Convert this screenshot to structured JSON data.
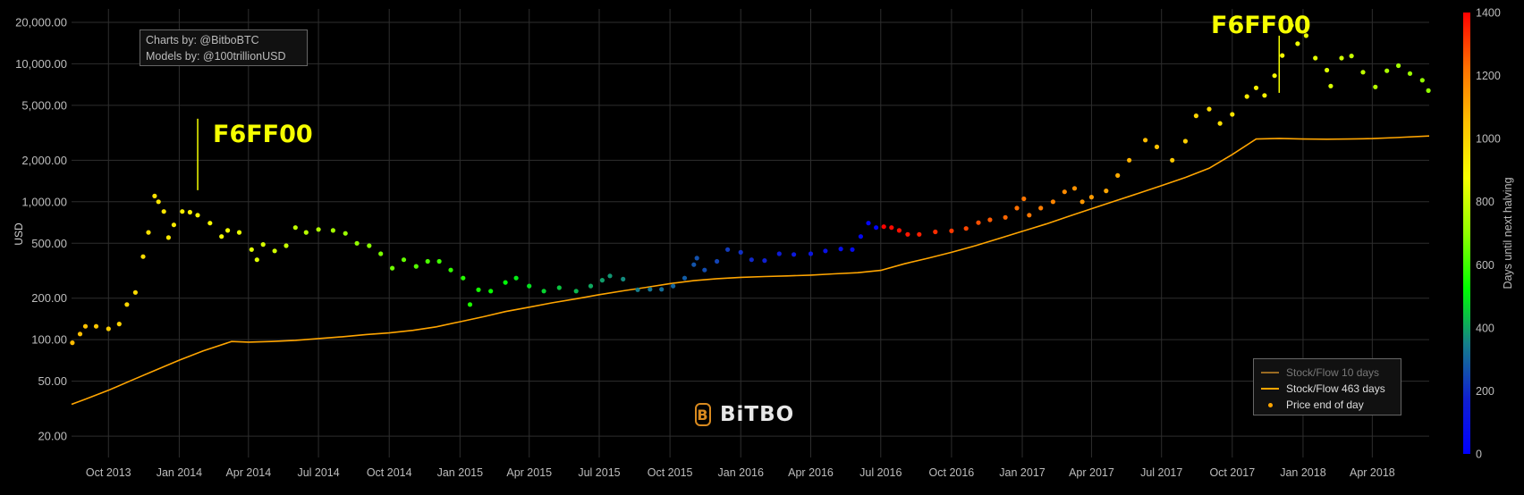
{
  "credits": {
    "line1": "Charts by: @BitboBTC",
    "line2": "Models by: @100trillionUSD"
  },
  "brand": {
    "name": "BiTBO",
    "mark": "B"
  },
  "annotations": [
    {
      "label": "F6FF00",
      "date": "2014-01-25",
      "tip_value": 4000,
      "color": "#F6FF00"
    },
    {
      "label": "F6FF00",
      "date": "2017-12-01",
      "tip_value": 16000,
      "color": "#F6FF00"
    }
  ],
  "legend": {
    "position": "bottom-right",
    "items": [
      {
        "name": "Stock/Flow 10 days",
        "color": "#9a6b22",
        "kind": "line"
      },
      {
        "name": "Stock/Flow 463 days",
        "color": "#ffa500",
        "kind": "line"
      },
      {
        "name": "Price end of day",
        "color": "#ffa500",
        "kind": "dot"
      }
    ]
  },
  "colorbar": {
    "title": "Days until next halving",
    "range": [
      0,
      1400
    ],
    "ticks": [
      "0",
      "200",
      "400",
      "600",
      "800",
      "1000",
      "1200",
      "1400"
    ],
    "colors": [
      "#0000ff",
      "#1020d0",
      "#15808a",
      "#00ff00",
      "#90ff00",
      "#f6ff00",
      "#ffc000",
      "#ff7000",
      "#ff0000"
    ]
  },
  "chart_data": {
    "type": "scatter",
    "title": "",
    "xlabel": "",
    "ylabel": "USD",
    "y_scale": "log",
    "ylim": [
      14,
      25000
    ],
    "xlim": [
      "2013-08-14",
      "2018-06-14"
    ],
    "grid": true,
    "x_ticks": [
      {
        "label": "Oct 2013",
        "date": "2013-10-01"
      },
      {
        "label": "Jan 2014",
        "date": "2014-01-01"
      },
      {
        "label": "Apr 2014",
        "date": "2014-04-01"
      },
      {
        "label": "Jul 2014",
        "date": "2014-07-01"
      },
      {
        "label": "Oct 2014",
        "date": "2014-10-01"
      },
      {
        "label": "Jan 2015",
        "date": "2015-01-01"
      },
      {
        "label": "Apr 2015",
        "date": "2015-04-01"
      },
      {
        "label": "Jul 2015",
        "date": "2015-07-01"
      },
      {
        "label": "Oct 2015",
        "date": "2015-10-01"
      },
      {
        "label": "Jan 2016",
        "date": "2016-01-01"
      },
      {
        "label": "Apr 2016",
        "date": "2016-04-01"
      },
      {
        "label": "Jul 2016",
        "date": "2016-07-01"
      },
      {
        "label": "Oct 2016",
        "date": "2016-10-01"
      },
      {
        "label": "Jan 2017",
        "date": "2017-01-01"
      },
      {
        "label": "Apr 2017",
        "date": "2017-04-01"
      },
      {
        "label": "Jul 2017",
        "date": "2017-07-01"
      },
      {
        "label": "Oct 2017",
        "date": "2017-10-01"
      },
      {
        "label": "Jan 2018",
        "date": "2018-01-01"
      },
      {
        "label": "Apr 2018",
        "date": "2018-04-01"
      }
    ],
    "y_ticks": [
      {
        "label": "20.00",
        "value": 20
      },
      {
        "label": "50.00",
        "value": 50
      },
      {
        "label": "100.00",
        "value": 100
      },
      {
        "label": "200.00",
        "value": 200
      },
      {
        "label": "500.00",
        "value": 500
      },
      {
        "label": "1,000.00",
        "value": 1000
      },
      {
        "label": "2,000.00",
        "value": 2000
      },
      {
        "label": "5,000.00",
        "value": 5000
      },
      {
        "label": "10,000.00",
        "value": 10000
      },
      {
        "label": "20,000.00",
        "value": 20000
      }
    ],
    "series": [
      {
        "name": "Stock/Flow 463 days",
        "kind": "line",
        "color": "#ffa500",
        "points": [
          [
            "2013-08-14",
            34
          ],
          [
            "2013-09-01",
            37
          ],
          [
            "2013-10-01",
            43
          ],
          [
            "2013-11-01",
            51
          ],
          [
            "2013-12-01",
            60
          ],
          [
            "2014-01-01",
            71
          ],
          [
            "2014-02-01",
            83
          ],
          [
            "2014-03-10",
            97
          ],
          [
            "2014-04-01",
            96
          ],
          [
            "2014-05-01",
            97
          ],
          [
            "2014-06-01",
            99
          ],
          [
            "2014-07-01",
            102
          ],
          [
            "2014-08-01",
            105
          ],
          [
            "2014-09-01",
            109
          ],
          [
            "2014-10-01",
            112
          ],
          [
            "2014-11-01",
            117
          ],
          [
            "2014-12-01",
            124
          ],
          [
            "2015-01-01",
            135
          ],
          [
            "2015-02-01",
            147
          ],
          [
            "2015-03-01",
            160
          ],
          [
            "2015-04-01",
            172
          ],
          [
            "2015-05-01",
            185
          ],
          [
            "2015-06-01",
            198
          ],
          [
            "2015-07-01",
            212
          ],
          [
            "2015-08-01",
            226
          ],
          [
            "2015-09-01",
            240
          ],
          [
            "2015-10-01",
            255
          ],
          [
            "2015-11-01",
            268
          ],
          [
            "2015-12-01",
            277
          ],
          [
            "2016-01-01",
            283
          ],
          [
            "2016-02-01",
            287
          ],
          [
            "2016-03-01",
            290
          ],
          [
            "2016-04-01",
            294
          ],
          [
            "2016-05-01",
            300
          ],
          [
            "2016-06-01",
            306
          ],
          [
            "2016-07-01",
            318
          ],
          [
            "2016-08-01",
            355
          ],
          [
            "2016-09-01",
            390
          ],
          [
            "2016-10-01",
            430
          ],
          [
            "2016-11-01",
            480
          ],
          [
            "2016-12-01",
            540
          ],
          [
            "2017-01-01",
            610
          ],
          [
            "2017-02-01",
            690
          ],
          [
            "2017-03-01",
            780
          ],
          [
            "2017-04-01",
            890
          ],
          [
            "2017-05-01",
            1010
          ],
          [
            "2017-06-01",
            1150
          ],
          [
            "2017-07-01",
            1310
          ],
          [
            "2017-08-01",
            1500
          ],
          [
            "2017-09-01",
            1750
          ],
          [
            "2017-10-01",
            2200
          ],
          [
            "2017-11-01",
            2850
          ],
          [
            "2017-12-01",
            2880
          ],
          [
            "2018-01-01",
            2850
          ],
          [
            "2018-02-01",
            2840
          ],
          [
            "2018-03-01",
            2850
          ],
          [
            "2018-04-01",
            2870
          ],
          [
            "2018-05-01",
            2920
          ],
          [
            "2018-06-14",
            3000
          ]
        ]
      },
      {
        "name": "Price end of day",
        "kind": "scatter",
        "color_by": "Days until next halving",
        "points": [
          [
            "2013-08-15",
            95,
            1060
          ],
          [
            "2013-08-25",
            110,
            1050
          ],
          [
            "2013-09-01",
            125,
            1045
          ],
          [
            "2013-09-15",
            125,
            1030
          ],
          [
            "2013-10-01",
            120,
            1015
          ],
          [
            "2013-10-15",
            130,
            1000
          ],
          [
            "2013-10-25",
            180,
            990
          ],
          [
            "2013-11-05",
            220,
            980
          ],
          [
            "2013-11-15",
            400,
            970
          ],
          [
            "2013-11-22",
            600,
            960
          ],
          [
            "2013-11-30",
            1100,
            955
          ],
          [
            "2013-12-05",
            1000,
            950
          ],
          [
            "2013-12-12",
            850,
            945
          ],
          [
            "2013-12-18",
            550,
            940
          ],
          [
            "2013-12-25",
            680,
            930
          ],
          [
            "2014-01-05",
            850,
            920
          ],
          [
            "2014-01-15",
            840,
            915
          ],
          [
            "2014-01-25",
            800,
            905
          ],
          [
            "2014-02-10",
            700,
            890
          ],
          [
            "2014-02-25",
            560,
            875
          ],
          [
            "2014-03-05",
            620,
            870
          ],
          [
            "2014-03-20",
            600,
            855
          ],
          [
            "2014-04-05",
            450,
            840
          ],
          [
            "2014-04-12",
            380,
            835
          ],
          [
            "2014-04-20",
            490,
            825
          ],
          [
            "2014-05-05",
            440,
            810
          ],
          [
            "2014-05-20",
            480,
            795
          ],
          [
            "2014-06-01",
            650,
            785
          ],
          [
            "2014-06-15",
            600,
            770
          ],
          [
            "2014-07-01",
            630,
            755
          ],
          [
            "2014-07-20",
            620,
            735
          ],
          [
            "2014-08-05",
            590,
            720
          ],
          [
            "2014-08-20",
            500,
            705
          ],
          [
            "2014-09-05",
            480,
            690
          ],
          [
            "2014-09-20",
            420,
            675
          ],
          [
            "2014-10-05",
            330,
            660
          ],
          [
            "2014-10-20",
            380,
            645
          ],
          [
            "2014-11-05",
            340,
            630
          ],
          [
            "2014-11-20",
            370,
            615
          ],
          [
            "2014-12-05",
            370,
            600
          ],
          [
            "2014-12-20",
            320,
            585
          ],
          [
            "2015-01-05",
            280,
            570
          ],
          [
            "2015-01-14",
            180,
            560
          ],
          [
            "2015-01-25",
            230,
            550
          ],
          [
            "2015-02-10",
            225,
            535
          ],
          [
            "2015-03-01",
            260,
            515
          ],
          [
            "2015-03-15",
            280,
            500
          ],
          [
            "2015-04-01",
            245,
            485
          ],
          [
            "2015-04-20",
            225,
            465
          ],
          [
            "2015-05-10",
            238,
            445
          ],
          [
            "2015-06-01",
            225,
            425
          ],
          [
            "2015-06-20",
            245,
            405
          ],
          [
            "2015-07-05",
            270,
            390
          ],
          [
            "2015-07-15",
            290,
            380
          ],
          [
            "2015-08-01",
            275,
            365
          ],
          [
            "2015-08-20",
            230,
            345
          ],
          [
            "2015-09-05",
            232,
            330
          ],
          [
            "2015-09-20",
            232,
            315
          ],
          [
            "2015-10-05",
            245,
            300
          ],
          [
            "2015-10-20",
            280,
            285
          ],
          [
            "2015-11-01",
            350,
            270
          ],
          [
            "2015-11-05",
            390,
            265
          ],
          [
            "2015-11-15",
            320,
            255
          ],
          [
            "2015-12-01",
            370,
            240
          ],
          [
            "2015-12-15",
            450,
            225
          ],
          [
            "2016-01-01",
            430,
            205
          ],
          [
            "2016-01-15",
            380,
            190
          ],
          [
            "2016-02-01",
            375,
            175
          ],
          [
            "2016-02-20",
            420,
            155
          ],
          [
            "2016-03-10",
            415,
            135
          ],
          [
            "2016-04-01",
            420,
            115
          ],
          [
            "2016-04-20",
            440,
            95
          ],
          [
            "2016-05-10",
            455,
            75
          ],
          [
            "2016-05-25",
            450,
            60
          ],
          [
            "2016-06-05",
            560,
            45
          ],
          [
            "2016-06-15",
            700,
            35
          ],
          [
            "2016-06-25",
            650,
            25
          ],
          [
            "2016-07-05",
            660,
            1395
          ],
          [
            "2016-07-15",
            650,
            1385
          ],
          [
            "2016-07-25",
            620,
            1375
          ],
          [
            "2016-08-05",
            580,
            1365
          ],
          [
            "2016-08-20",
            580,
            1350
          ],
          [
            "2016-09-10",
            605,
            1330
          ],
          [
            "2016-10-01",
            615,
            1310
          ],
          [
            "2016-10-20",
            640,
            1290
          ],
          [
            "2016-11-05",
            705,
            1275
          ],
          [
            "2016-11-20",
            740,
            1260
          ],
          [
            "2016-12-10",
            770,
            1240
          ],
          [
            "2016-12-25",
            900,
            1225
          ],
          [
            "2017-01-03",
            1050,
            1215
          ],
          [
            "2017-01-10",
            800,
            1210
          ],
          [
            "2017-01-25",
            900,
            1195
          ],
          [
            "2017-02-10",
            1000,
            1180
          ],
          [
            "2017-02-25",
            1180,
            1165
          ],
          [
            "2017-03-10",
            1250,
            1150
          ],
          [
            "2017-03-20",
            1000,
            1140
          ],
          [
            "2017-04-01",
            1080,
            1130
          ],
          [
            "2017-04-20",
            1200,
            1110
          ],
          [
            "2017-05-05",
            1550,
            1095
          ],
          [
            "2017-05-20",
            2000,
            1080
          ],
          [
            "2017-06-10",
            2800,
            1060
          ],
          [
            "2017-06-25",
            2500,
            1045
          ],
          [
            "2017-07-15",
            2000,
            1025
          ],
          [
            "2017-08-01",
            2750,
            1010
          ],
          [
            "2017-08-15",
            4200,
            995
          ],
          [
            "2017-09-01",
            4700,
            980
          ],
          [
            "2017-09-15",
            3700,
            965
          ],
          [
            "2017-10-01",
            4300,
            950
          ],
          [
            "2017-10-20",
            5800,
            930
          ],
          [
            "2017-11-01",
            6700,
            920
          ],
          [
            "2017-11-12",
            5900,
            910
          ],
          [
            "2017-11-25",
            8200,
            895
          ],
          [
            "2017-12-05",
            11500,
            885
          ],
          [
            "2017-12-17",
            19000,
            875
          ],
          [
            "2017-12-25",
            14000,
            865
          ],
          [
            "2018-01-05",
            16000,
            855
          ],
          [
            "2018-01-17",
            11000,
            845
          ],
          [
            "2018-02-01",
            9000,
            830
          ],
          [
            "2018-02-06",
            6900,
            825
          ],
          [
            "2018-02-20",
            11000,
            810
          ],
          [
            "2018-03-05",
            11400,
            795
          ],
          [
            "2018-03-20",
            8700,
            780
          ],
          [
            "2018-04-05",
            6800,
            765
          ],
          [
            "2018-04-20",
            8900,
            750
          ],
          [
            "2018-05-05",
            9700,
            735
          ],
          [
            "2018-05-20",
            8500,
            720
          ],
          [
            "2018-06-05",
            7600,
            705
          ],
          [
            "2018-06-13",
            6400,
            700
          ]
        ]
      }
    ]
  }
}
